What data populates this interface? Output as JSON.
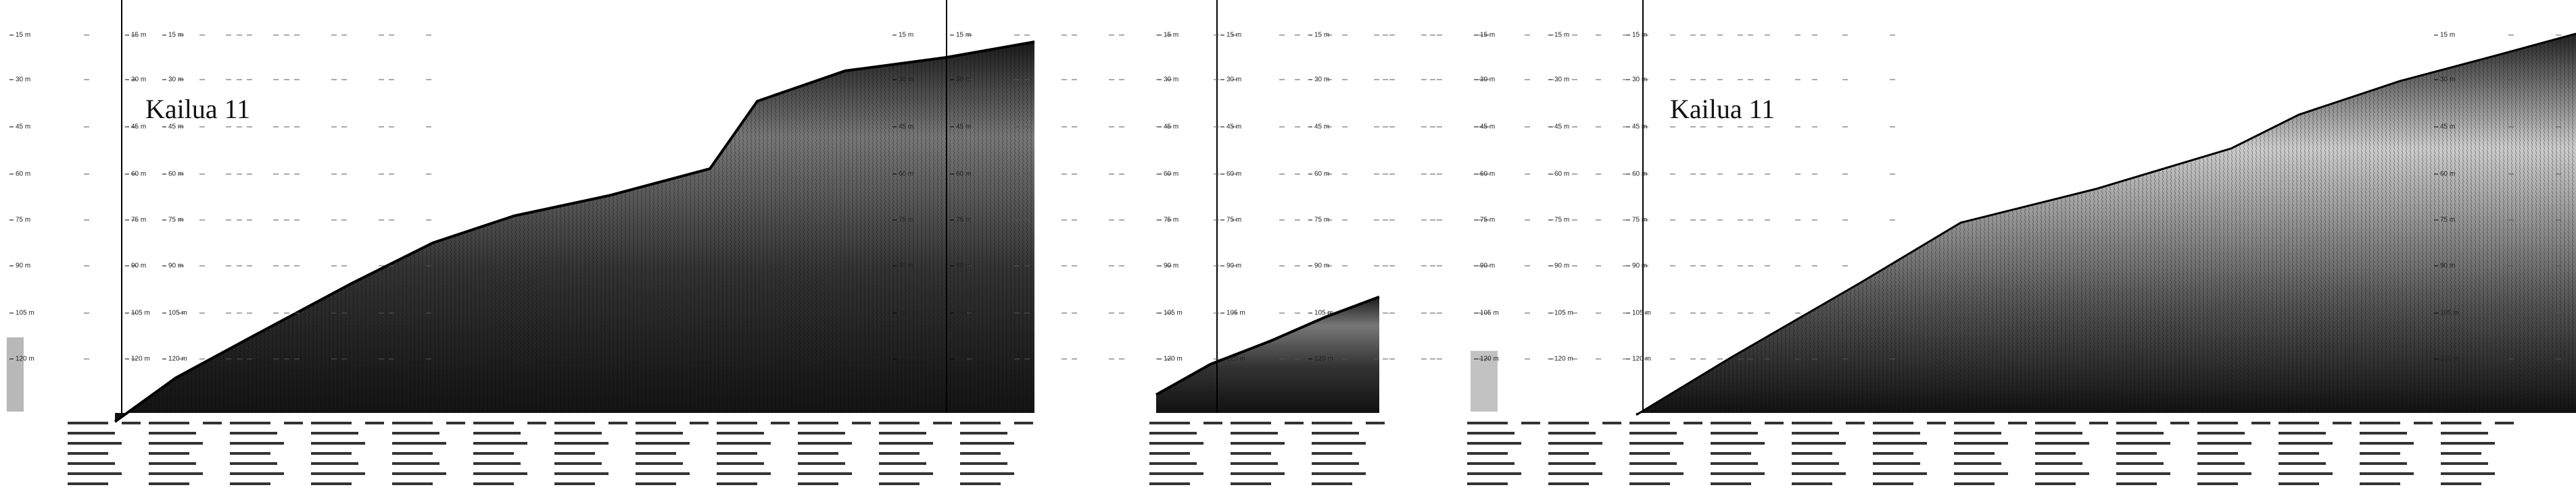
{
  "panels": [
    {
      "title": "Kailua 11"
    },
    {
      "title": "Kailua 11"
    }
  ],
  "depth_labels": [
    "15 m",
    "30 m",
    "45 m",
    "60 m",
    "75 m",
    "90 m",
    "105 m",
    "120 m"
  ]
}
